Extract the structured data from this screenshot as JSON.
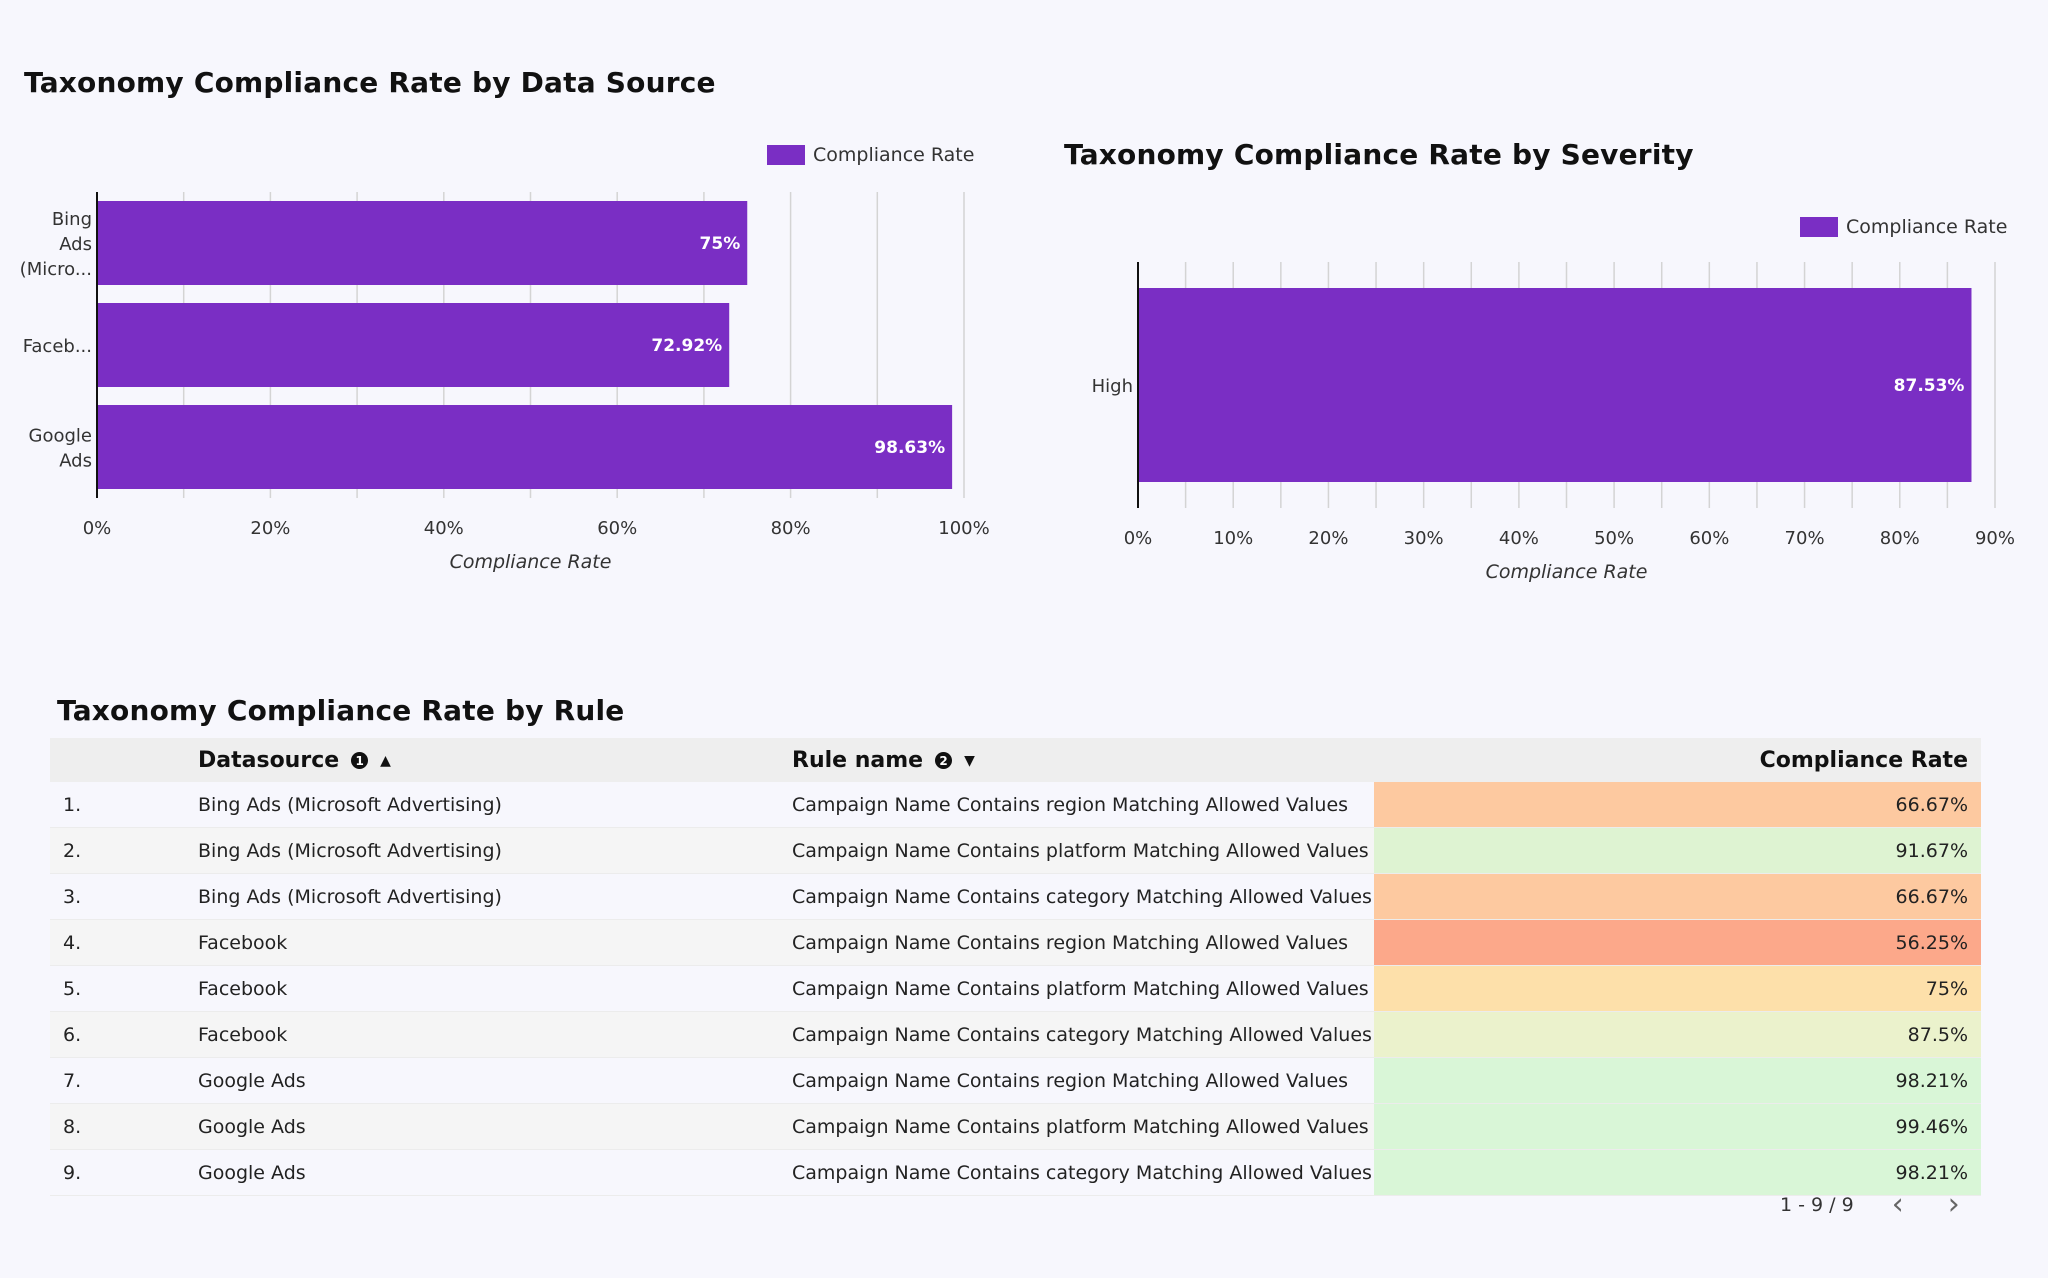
{
  "chart1": {
    "title": "Taxonomy Compliance Rate by Data Source",
    "legend": "Compliance Rate",
    "xlabel": "Compliance Rate",
    "ticks": [
      "0%",
      "20%",
      "40%",
      "60%",
      "80%",
      "100%"
    ],
    "bar_color": "#7a2ec4"
  },
  "chart2": {
    "title": "Taxonomy Compliance Rate by Severity",
    "legend": "Compliance Rate",
    "xlabel": "Compliance Rate",
    "ticks": [
      "0%",
      "10%",
      "20%",
      "30%",
      "40%",
      "50%",
      "60%",
      "70%",
      "80%",
      "90%"
    ],
    "bar_color": "#7a2ec4"
  },
  "chart_data": [
    {
      "type": "bar",
      "orientation": "horizontal",
      "title": "Taxonomy Compliance Rate by Data Source",
      "categories": [
        [
          "Bing",
          "Ads",
          "(Micro..."
        ],
        [
          "Faceb..."
        ],
        [
          "Google",
          "Ads"
        ]
      ],
      "series": [
        {
          "name": "Compliance Rate",
          "values": [
            75,
            72.92,
            98.63
          ]
        }
      ],
      "data_labels": [
        "75%",
        "72.92%",
        "98.63%"
      ],
      "xlabel": "Compliance Rate",
      "xlim": [
        0,
        100
      ],
      "grid": true,
      "legend": "top-right"
    },
    {
      "type": "bar",
      "orientation": "horizontal",
      "title": "Taxonomy Compliance Rate by Severity",
      "categories": [
        [
          "High"
        ]
      ],
      "series": [
        {
          "name": "Compliance Rate",
          "values": [
            87.53
          ]
        }
      ],
      "data_labels": [
        "87.53%"
      ],
      "xlabel": "Compliance Rate",
      "xlim": [
        0,
        90
      ],
      "grid": true,
      "legend": "top-right"
    }
  ],
  "table": {
    "title": "Taxonomy Compliance Rate by Rule",
    "headers": {
      "datasource": "Datasource",
      "datasource_badge": "1",
      "rule": "Rule name",
      "rule_badge": "2",
      "rate": "Compliance Rate"
    },
    "rows": [
      {
        "num": "1.",
        "datasource": "Bing Ads (Microsoft Advertising)",
        "rule": "Campaign Name Contains region Matching Allowed Values",
        "rate": "66.67%",
        "color": "#fdc9a0"
      },
      {
        "num": "2.",
        "datasource": "Bing Ads (Microsoft Advertising)",
        "rule": "Campaign Name Contains platform Matching Allowed Values",
        "rate": "91.67%",
        "color": "#def3d2"
      },
      {
        "num": "3.",
        "datasource": "Bing Ads (Microsoft Advertising)",
        "rule": "Campaign Name Contains category Matching Allowed Values",
        "rate": "66.67%",
        "color": "#fdc9a0"
      },
      {
        "num": "4.",
        "datasource": "Facebook",
        "rule": "Campaign Name Contains region Matching Allowed Values",
        "rate": "56.25%",
        "color": "#fca88a"
      },
      {
        "num": "5.",
        "datasource": "Facebook",
        "rule": "Campaign Name Contains platform Matching Allowed Values",
        "rate": "75%",
        "color": "#fde0aa"
      },
      {
        "num": "6.",
        "datasource": "Facebook",
        "rule": "Campaign Name Contains category Matching Allowed Values",
        "rate": "87.5%",
        "color": "#ebf2cc"
      },
      {
        "num": "7.",
        "datasource": "Google Ads",
        "rule": "Campaign Name Contains region Matching Allowed Values",
        "rate": "98.21%",
        "color": "#d9f6d7"
      },
      {
        "num": "8.",
        "datasource": "Google Ads",
        "rule": "Campaign Name Contains platform Matching Allowed Values",
        "rate": "99.46%",
        "color": "#d9f6d7"
      },
      {
        "num": "9.",
        "datasource": "Google Ads",
        "rule": "Campaign Name Contains category Matching Allowed Values",
        "rate": "98.21%",
        "color": "#d9f6d7"
      }
    ]
  },
  "pagination": {
    "range": "1 - 9 / 9",
    "prev_icon": "chevron-left-icon",
    "next_icon": "chevron-right-icon"
  }
}
